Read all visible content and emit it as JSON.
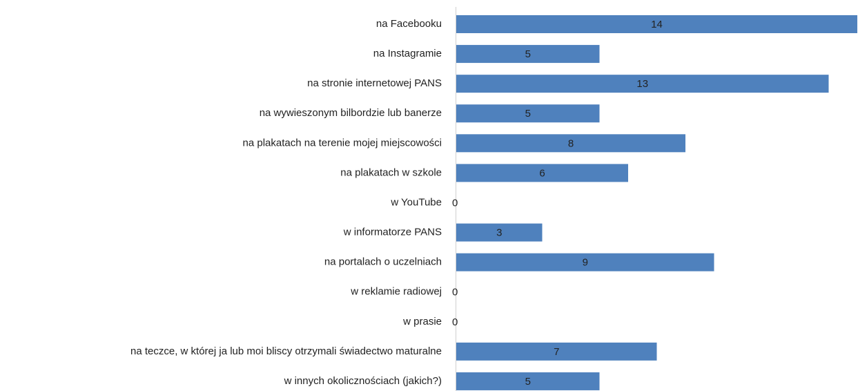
{
  "chart_data": {
    "type": "bar",
    "orientation": "horizontal",
    "categories": [
      "na Facebooku",
      "na Instagramie",
      "na stronie internetowej PANS",
      "na wywieszonym bilbordzie lub banerze",
      "na plakatach na terenie mojej miejscowości",
      "na plakatach w szkole",
      "w YouTube",
      "w informatorze PANS",
      "na portalach o uczelniach",
      "w reklamie radiowej",
      "w prasie",
      "na teczce, w której ja lub moi bliscy otrzymali świadectwo maturalne",
      "w innych okolicznościach (jakich?)"
    ],
    "values": [
      14,
      5,
      13,
      5,
      8,
      6,
      0,
      3,
      9,
      0,
      0,
      7,
      5
    ],
    "color": "#4f81bd"
  }
}
